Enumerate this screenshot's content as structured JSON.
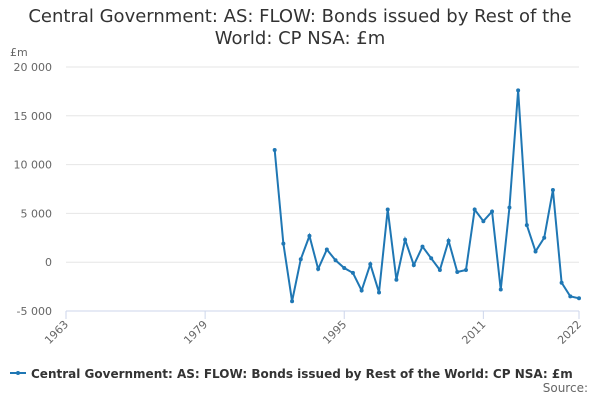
{
  "chart_data": {
    "type": "line",
    "title": "Central Government: AS: FLOW: Bonds issued by Rest of the World: CP NSA: £m",
    "y_unit": "£m",
    "x": [
      1987,
      1988,
      1989,
      1990,
      1991,
      1992,
      1993,
      1994,
      1995,
      1996,
      1997,
      1998,
      1999,
      2000,
      2001,
      2002,
      2003,
      2004,
      2005,
      2006,
      2007,
      2008,
      2009,
      2010,
      2011,
      2012,
      2013,
      2014,
      2015,
      2016,
      2017,
      2018,
      2019,
      2020,
      2021,
      2022
    ],
    "series": [
      {
        "name": "Central Government: AS: FLOW: Bonds issued by Rest of the World: CP NSA: £m",
        "color": "#1f77b4",
        "values": [
          11500,
          1900,
          -4000,
          300,
          2700,
          -700,
          1300,
          200,
          -600,
          -1100,
          -2900,
          -200,
          -3100,
          5400,
          -1800,
          2300,
          -300,
          1600,
          400,
          -800,
          2200,
          -1000,
          -800,
          5400,
          4200,
          5200,
          -2800,
          5600,
          17600,
          3800,
          1100,
          2500,
          7400,
          -2100,
          -3500,
          -3700
        ]
      }
    ],
    "xlim": [
      1963,
      2022
    ],
    "xticks": [
      1963,
      1979,
      1995,
      2011,
      2022
    ],
    "ylim": [
      -5000,
      20000
    ],
    "yticks": [
      {
        "value": -5000,
        "label": "-5 000"
      },
      0,
      {
        "value": 5000,
        "label": "5 000"
      },
      {
        "value": 10000,
        "label": "10 000"
      },
      {
        "value": 15000,
        "label": "15 000"
      },
      {
        "value": 20000,
        "label": "20 000"
      }
    ],
    "grid": true,
    "source": "Source:"
  }
}
